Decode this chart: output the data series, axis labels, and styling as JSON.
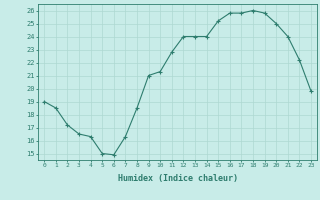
{
  "x": [
    0,
    1,
    2,
    3,
    4,
    5,
    6,
    7,
    8,
    9,
    10,
    11,
    12,
    13,
    14,
    15,
    16,
    17,
    18,
    19,
    20,
    21,
    22,
    23
  ],
  "y": [
    19,
    18.5,
    17.2,
    16.5,
    16.3,
    15.0,
    14.9,
    16.3,
    18.5,
    21.0,
    21.3,
    22.8,
    24.0,
    24.0,
    24.0,
    25.2,
    25.8,
    25.8,
    26.0,
    25.8,
    25.0,
    24.0,
    22.2,
    19.8
  ],
  "line_color": "#2e7d6e",
  "marker": "+",
  "bg_color": "#c8ece8",
  "grid_color": "#aed8d2",
  "xlabel": "Humidex (Indice chaleur)",
  "ylabel_ticks": [
    15,
    16,
    17,
    18,
    19,
    20,
    21,
    22,
    23,
    24,
    25,
    26
  ],
  "xlim": [
    -0.5,
    23.5
  ],
  "ylim": [
    14.5,
    26.5
  ],
  "tick_color": "#2e7d6e",
  "label_color": "#2e7d6e"
}
